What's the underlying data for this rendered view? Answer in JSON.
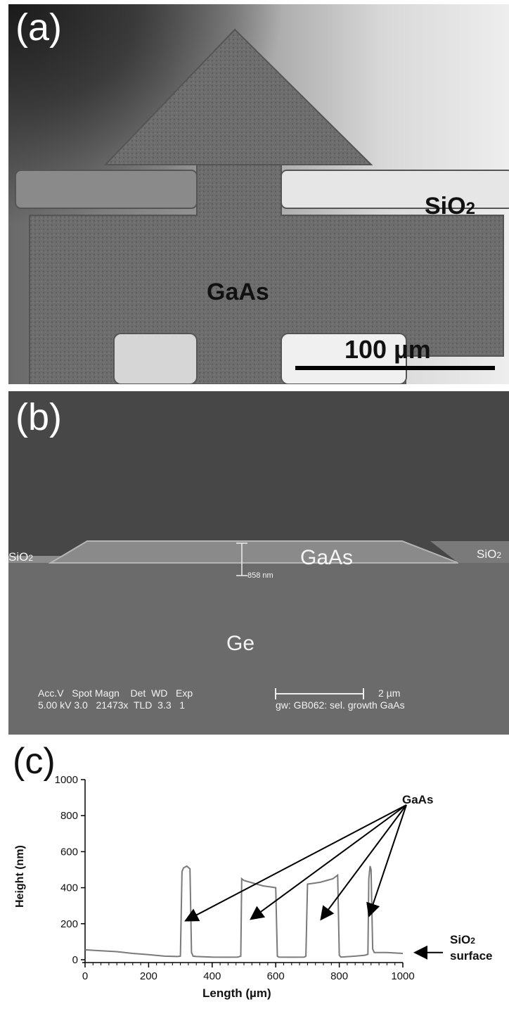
{
  "panel_a": {
    "label": "(a)",
    "material_label": "GaAs",
    "substrate_label_base": "SiO",
    "substrate_label_sub": "2",
    "scalebar_text": "100 µm"
  },
  "panel_b": {
    "label": "(b)",
    "gaas_label": "GaAs",
    "ge_label": "Ge",
    "sio2_left_base": "SiO",
    "sio2_left_sub": "2",
    "sio2_right_base": "SiO",
    "sio2_right_sub": "2",
    "thickness_label": "858 nm",
    "scale_text": "2 µm",
    "info_header": "Acc.V   Spot Magn    Det  WD   Exp",
    "info_values": "5.00 kV 3.0   21473x  TLD  3.3   1",
    "sample_text": "gw: GB062: sel. growth GaAs"
  },
  "panel_c": {
    "label": "(c)",
    "gaas_annotation": "GaAs",
    "sio2_annotation_base": "SiO",
    "sio2_annotation_sub": "2",
    "surface_annotation": "surface"
  },
  "chart_data": {
    "type": "line",
    "xlabel": "Length (µm)",
    "ylabel": "Height (nm)",
    "xlim": [
      0,
      1000
    ],
    "ylim": [
      0,
      1000
    ],
    "xticks": [
      0,
      200,
      400,
      600,
      800,
      1000
    ],
    "yticks": [
      0,
      200,
      400,
      600,
      800,
      1000
    ],
    "grid": false,
    "series": [
      {
        "color": "#7a7a7a",
        "x": [
          0,
          50,
          100,
          150,
          200,
          250,
          290,
          300,
          305,
          310,
          320,
          330,
          335,
          340,
          350,
          400,
          450,
          480,
          490,
          493,
          500,
          520,
          540,
          560,
          580,
          600,
          605,
          610,
          650,
          690,
          695,
          700,
          720,
          740,
          760,
          780,
          795,
          800,
          805,
          850,
          880,
          890,
          893,
          897,
          900,
          905,
          910,
          950,
          1000
        ],
        "y": [
          55,
          50,
          45,
          35,
          28,
          20,
          18,
          20,
          490,
          510,
          520,
          505,
          40,
          20,
          18,
          15,
          14,
          15,
          20,
          450,
          440,
          430,
          420,
          410,
          405,
          400,
          20,
          15,
          14,
          15,
          20,
          420,
          425,
          430,
          440,
          450,
          470,
          25,
          15,
          20,
          25,
          30,
          450,
          520,
          500,
          60,
          40,
          40,
          35
        ]
      }
    ],
    "annotation_targets": [
      {
        "x": 320,
        "y": 220
      },
      {
        "x": 525,
        "y": 230
      },
      {
        "x": 745,
        "y": 230
      },
      {
        "x": 895,
        "y": 250
      }
    ],
    "sio2_marker_y": 40
  }
}
